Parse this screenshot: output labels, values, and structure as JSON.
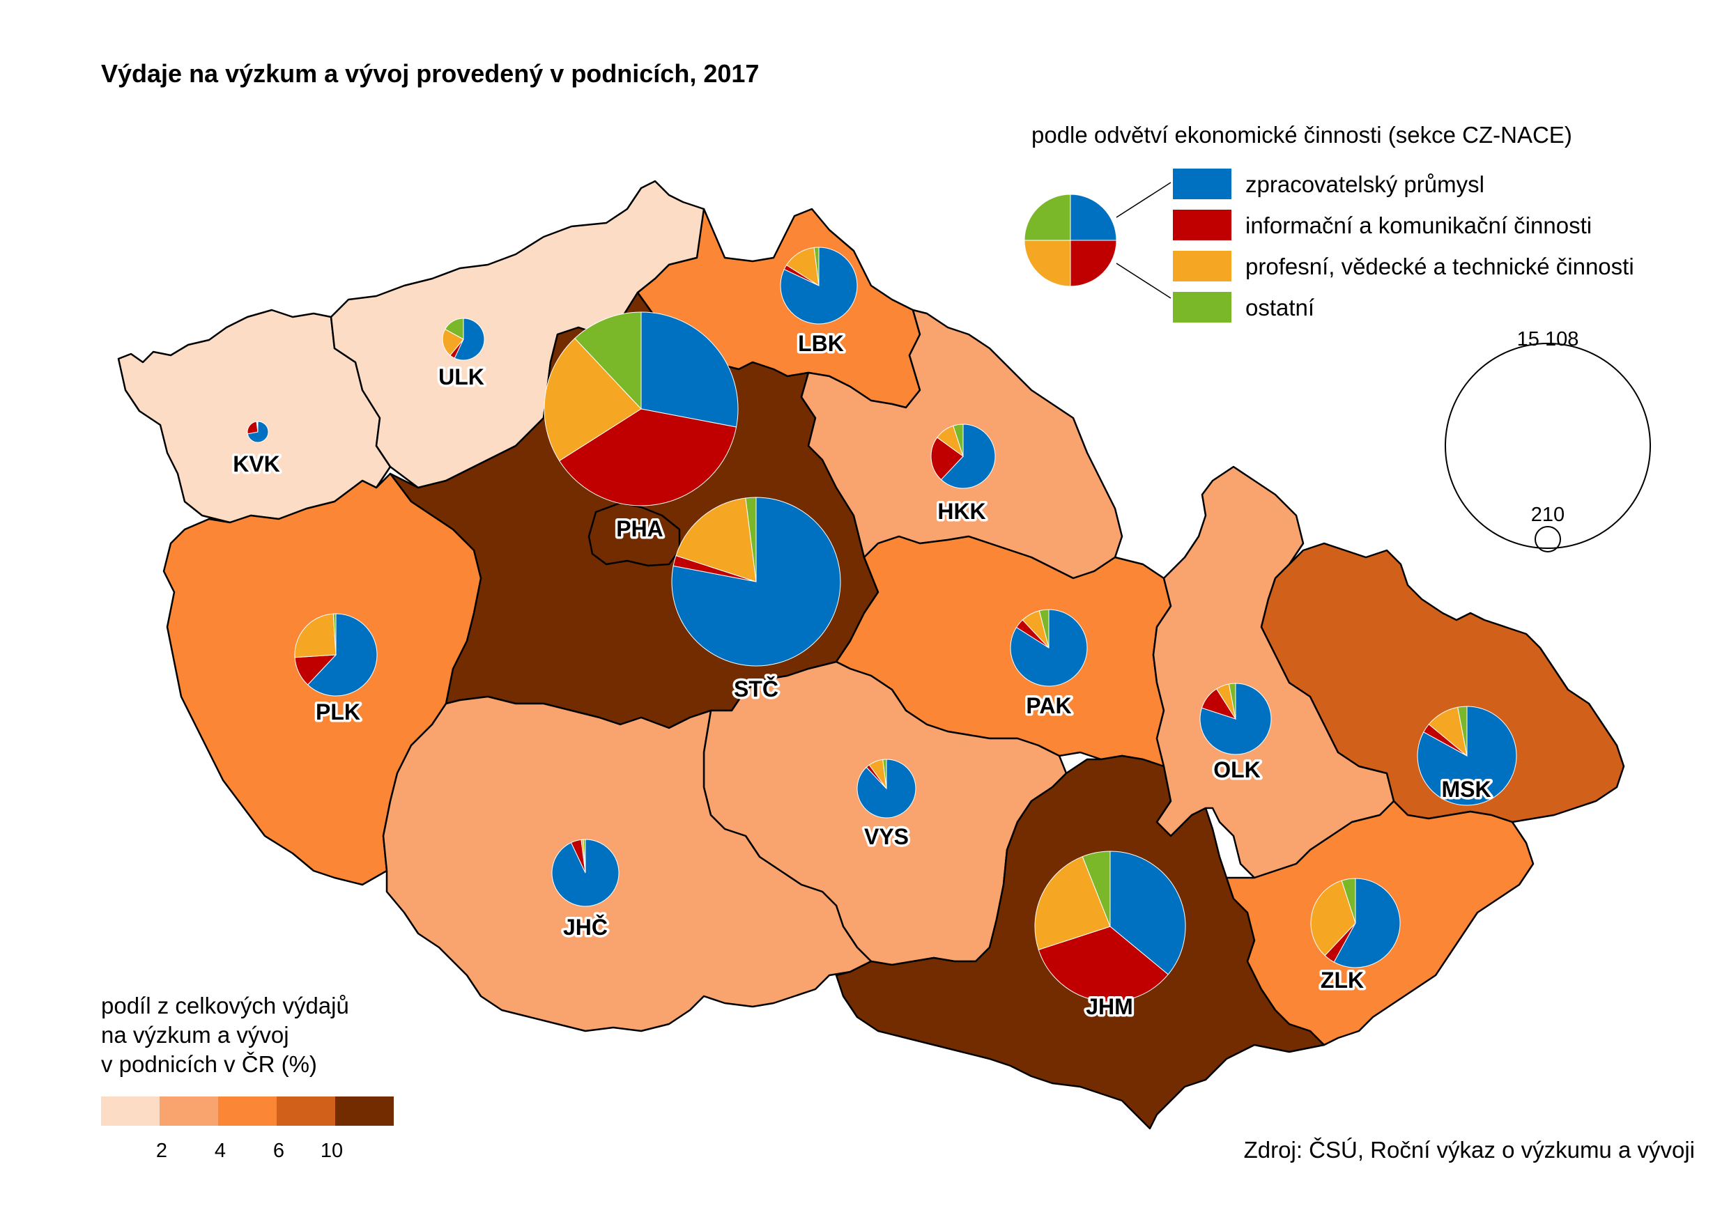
{
  "title": "Výdaje na výzkum a vývoj provedený v podnicích, 2017",
  "legend_sectors": {
    "title": "podle odvětví ekonomické činnosti (sekce CZ-NACE)",
    "items": [
      {
        "key": "zpr",
        "label": "zpracovatelský průmysl",
        "color": "#0070C0"
      },
      {
        "key": "ikt",
        "label": "informační a komunikační činnosti",
        "color": "#C00000"
      },
      {
        "key": "prof",
        "label": "profesní, vědecké a technické činnosti",
        "color": "#F5A623"
      },
      {
        "key": "ost",
        "label": "ostatní",
        "color": "#7AB829"
      }
    ]
  },
  "legend_size": {
    "max_label": "15 108",
    "min_label": "210"
  },
  "legend_choropleth": {
    "title_lines": [
      "podíl z celkových výdajů",
      "na výzkum a vývoj",
      "v podnicích v ČR (%)"
    ],
    "colors": [
      "#FDDCC6",
      "#F9A36E",
      "#FB8636",
      "#D1601A",
      "#722C00"
    ],
    "ticks": [
      "2",
      "4",
      "6",
      "10"
    ]
  },
  "source": "Zdroj: ČSÚ, Roční výkaz o výzkumu a vývoji",
  "regions": [
    {
      "code": "KVK",
      "class": 0
    },
    {
      "code": "ULK",
      "class": 0
    },
    {
      "code": "LBK",
      "class": 2
    },
    {
      "code": "PHA",
      "class": 4
    },
    {
      "code": "STČ",
      "class": 4
    },
    {
      "code": "HKK",
      "class": 1
    },
    {
      "code": "PLK",
      "class": 2
    },
    {
      "code": "PAK",
      "class": 2
    },
    {
      "code": "VYS",
      "class": 1
    },
    {
      "code": "JHČ",
      "class": 1
    },
    {
      "code": "JHM",
      "class": 4
    },
    {
      "code": "OLK",
      "class": 1
    },
    {
      "code": "MSK",
      "class": 3
    },
    {
      "code": "ZLK",
      "class": 2
    }
  ],
  "pies": [
    {
      "code": "PHA",
      "shares": [
        0.28,
        0.38,
        0.22,
        0.12
      ]
    },
    {
      "code": "STČ",
      "shares": [
        0.78,
        0.02,
        0.18,
        0.02
      ]
    },
    {
      "code": "JHM",
      "shares": [
        0.36,
        0.34,
        0.24,
        0.06
      ]
    },
    {
      "code": "MSK",
      "shares": [
        0.83,
        0.03,
        0.11,
        0.03
      ]
    },
    {
      "code": "ZLK",
      "shares": [
        0.58,
        0.04,
        0.33,
        0.05
      ]
    },
    {
      "code": "OLK",
      "shares": [
        0.8,
        0.11,
        0.06,
        0.03
      ]
    },
    {
      "code": "PAK",
      "shares": [
        0.84,
        0.04,
        0.08,
        0.04
      ]
    },
    {
      "code": "PLK",
      "shares": [
        0.62,
        0.12,
        0.25,
        0.01
      ]
    },
    {
      "code": "HKK",
      "shares": [
        0.62,
        0.23,
        0.1,
        0.05
      ]
    },
    {
      "code": "LBK",
      "shares": [
        0.82,
        0.02,
        0.14,
        0.02
      ]
    },
    {
      "code": "ULK",
      "shares": [
        0.57,
        0.04,
        0.22,
        0.17
      ]
    },
    {
      "code": "JHČ",
      "shares": [
        0.93,
        0.05,
        0.01,
        0.01
      ]
    },
    {
      "code": "VYS",
      "shares": [
        0.88,
        0.02,
        0.08,
        0.02
      ]
    },
    {
      "code": "KVK",
      "shares": [
        0.72,
        0.26,
        0.01,
        0.01
      ]
    }
  ],
  "legend_pie_shares": [
    0.25,
    0.25,
    0.25,
    0.25
  ]
}
